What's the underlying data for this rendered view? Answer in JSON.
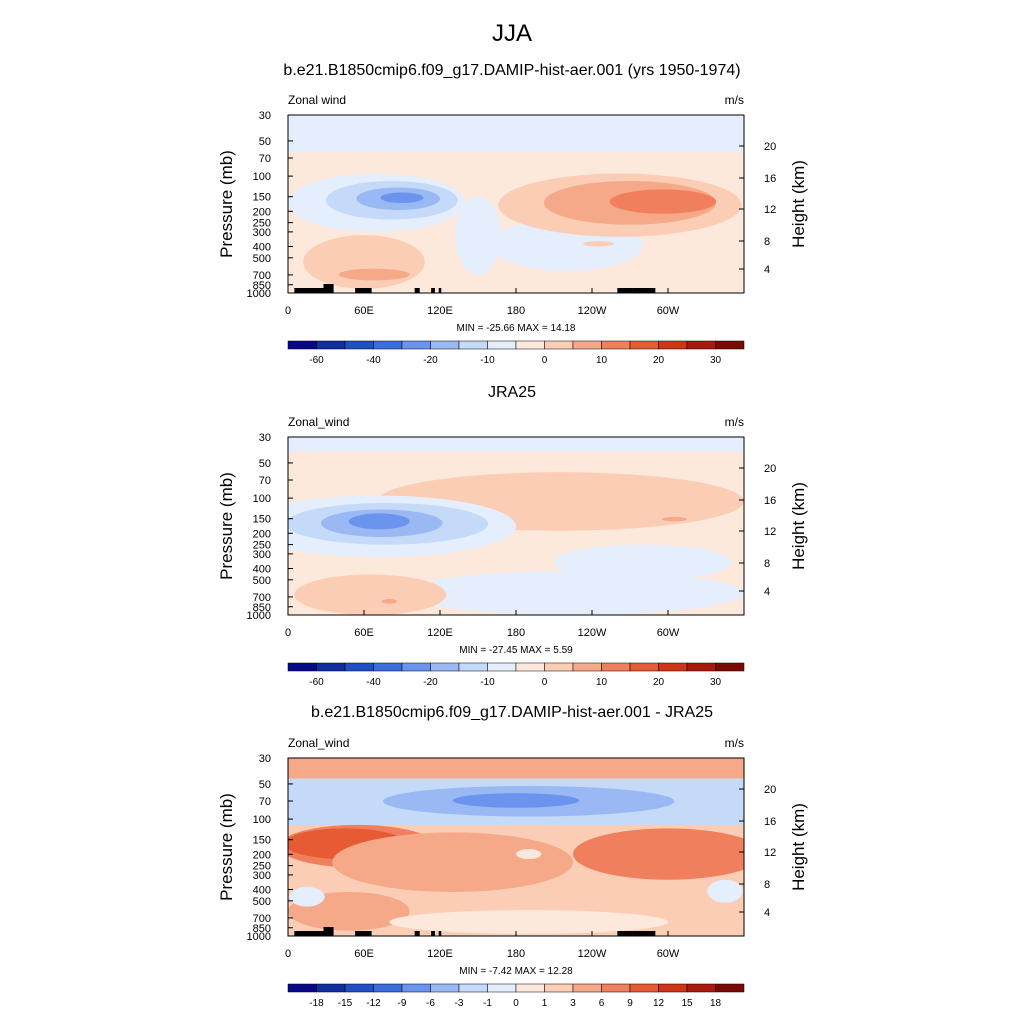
{
  "figure_title": "JJA",
  "chart_data": [
    {
      "type": "heatmap",
      "title": "b.e21.B1850cmip6.f09_g17.DAMIP-hist-aer.001 (yrs 1950-1974)",
      "left_label": "Zonal wind",
      "units": "m/s",
      "ylabel": "Pressure (mb)",
      "y2label": "Height (km)",
      "x_ticks": [
        "0",
        "60E",
        "120E",
        "180",
        "120W",
        "60W"
      ],
      "y_ticks": [
        "30",
        "50",
        "70",
        "100",
        "150",
        "200",
        "250",
        "300",
        "400",
        "500",
        "700",
        "850",
        "1000"
      ],
      "y2_ticks": [
        "20",
        "16",
        "12",
        "8",
        "4"
      ],
      "xlim": [
        0,
        360
      ],
      "ylim": [
        1000,
        30
      ],
      "stats": "MIN = -25.66  MAX =  14.18",
      "min": -25.66,
      "max": 14.18,
      "colorbar_labels": [
        "-60",
        "-40",
        "-20",
        "-10",
        "0",
        "10",
        "20",
        "30"
      ]
    },
    {
      "type": "heatmap",
      "title": "JRA25",
      "left_label": "Zonal_wind",
      "units": "m/s",
      "ylabel": "Pressure (mb)",
      "y2label": "Height (km)",
      "x_ticks": [
        "0",
        "60E",
        "120E",
        "180",
        "120W",
        "60W"
      ],
      "y_ticks": [
        "30",
        "50",
        "70",
        "100",
        "150",
        "200",
        "250",
        "300",
        "400",
        "500",
        "700",
        "850",
        "1000"
      ],
      "y2_ticks": [
        "20",
        "16",
        "12",
        "8",
        "4"
      ],
      "xlim": [
        0,
        360
      ],
      "ylim": [
        1000,
        30
      ],
      "stats": "MIN = -27.45  MAX =   5.59",
      "min": -27.45,
      "max": 5.59,
      "colorbar_labels": [
        "-60",
        "-40",
        "-20",
        "-10",
        "0",
        "10",
        "20",
        "30"
      ]
    },
    {
      "type": "heatmap",
      "title": "b.e21.B1850cmip6.f09_g17.DAMIP-hist-aer.001 - JRA25",
      "left_label": "Zonal_wind",
      "units": "m/s",
      "ylabel": "Pressure (mb)",
      "y2label": "Height (km)",
      "x_ticks": [
        "0",
        "60E",
        "120E",
        "180",
        "120W",
        "60W"
      ],
      "y_ticks": [
        "30",
        "50",
        "70",
        "100",
        "150",
        "200",
        "250",
        "300",
        "400",
        "500",
        "700",
        "850",
        "1000"
      ],
      "y2_ticks": [
        "20",
        "16",
        "12",
        "8",
        "4"
      ],
      "xlim": [
        0,
        360
      ],
      "ylim": [
        1000,
        30
      ],
      "stats": "MIN =  -7.42  MAX =  12.28",
      "min": -7.42,
      "max": 12.28,
      "colorbar_labels": [
        "-18",
        "-15",
        "-12",
        "-9",
        "-6",
        "-3",
        "-1",
        "0",
        "1",
        "3",
        "6",
        "9",
        "12",
        "15",
        "18"
      ]
    }
  ],
  "colorbar_colors": [
    "#08088a",
    "#0f2ea0",
    "#1f4fc4",
    "#3a6de0",
    "#6b94ee",
    "#9ab8f4",
    "#c4daf8",
    "#e4eefc",
    "#fde8dc",
    "#fbcdb5",
    "#f6a988",
    "#f0805d",
    "#e65a34",
    "#d03517",
    "#aa1a0c",
    "#7a0a04"
  ]
}
